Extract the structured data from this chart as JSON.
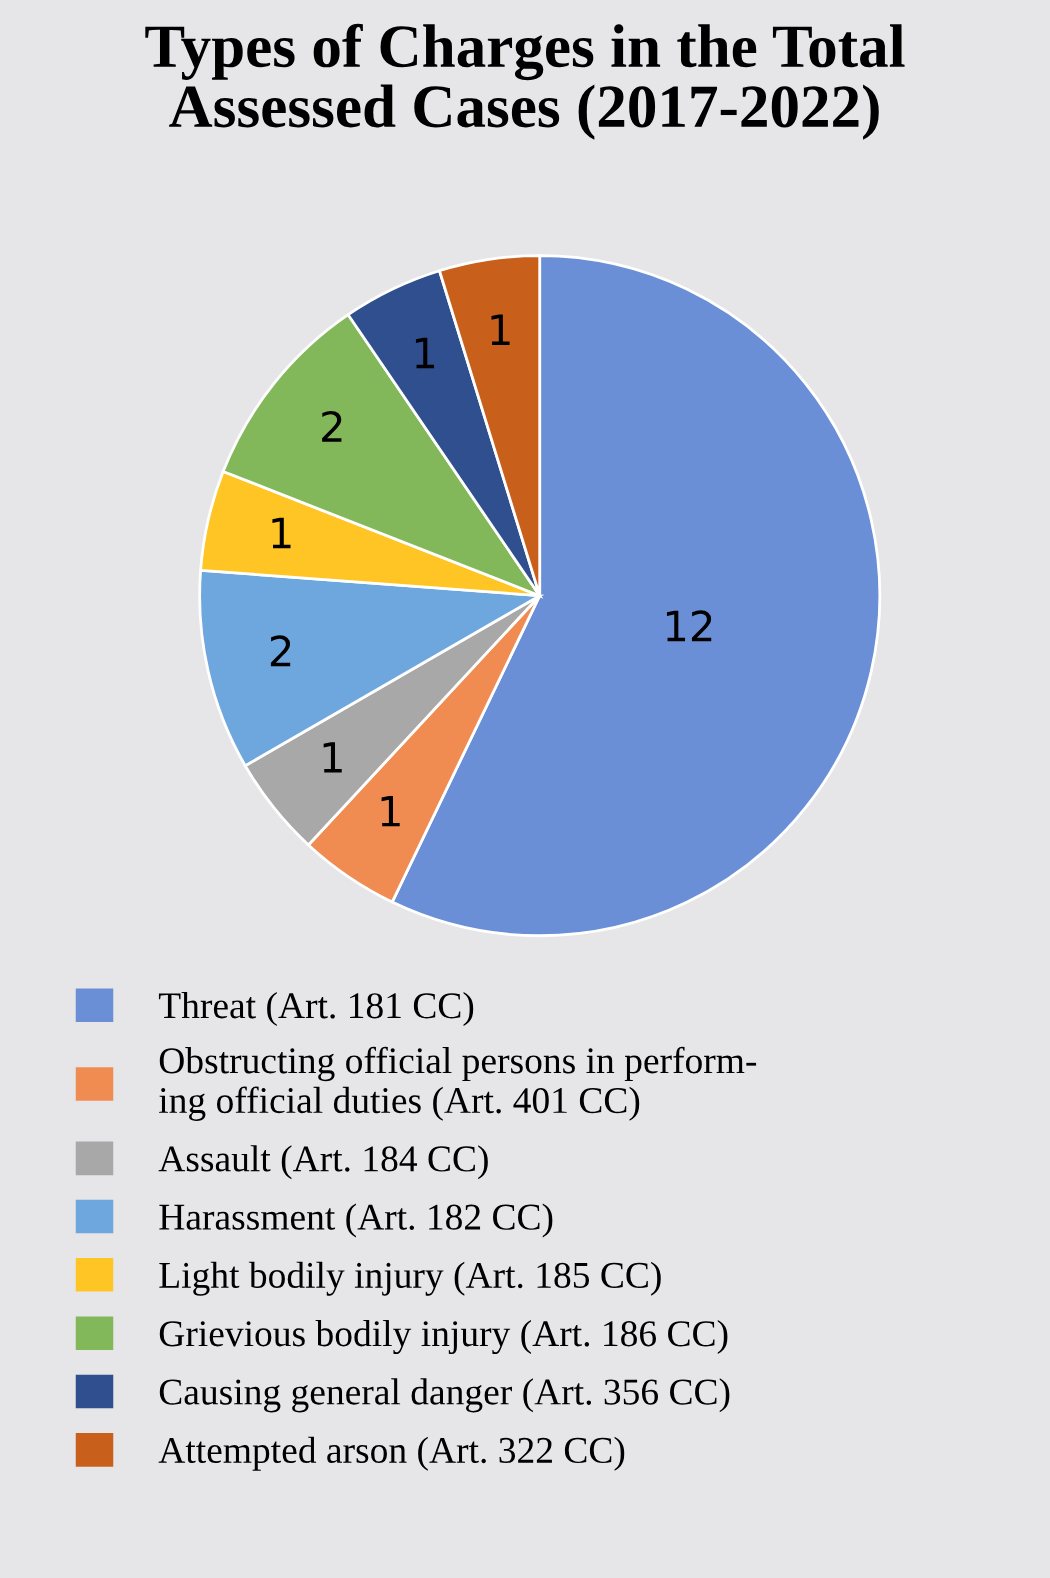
{
  "chart_data": {
    "type": "pie",
    "title": "Types of Charges in the Total\nAssessed Cases (2017-2022)",
    "categories": [
      "Threat (Art. 181 CC)",
      "Obstructing official persons in perform-\ning official duties (Art. 401 CC)",
      "Assault (Art. 184 CC)",
      "Harassment (Art. 182 CC)",
      "Light bodily injury (Art. 185 CC)",
      "Grievious bodily injury (Art. 186 CC)",
      "Causing general danger (Art. 356 CC)",
      "Attempted arson (Art. 322 CC)"
    ],
    "values": [
      12,
      1,
      1,
      2,
      1,
      2,
      1,
      1
    ],
    "colors": [
      "#6a8fd6",
      "#f08c52",
      "#a8a8a8",
      "#6ea6de",
      "#ffc524",
      "#82b85a",
      "#2f4f8f",
      "#c8601c"
    ],
    "data_labels": true,
    "legend": "bottom"
  }
}
